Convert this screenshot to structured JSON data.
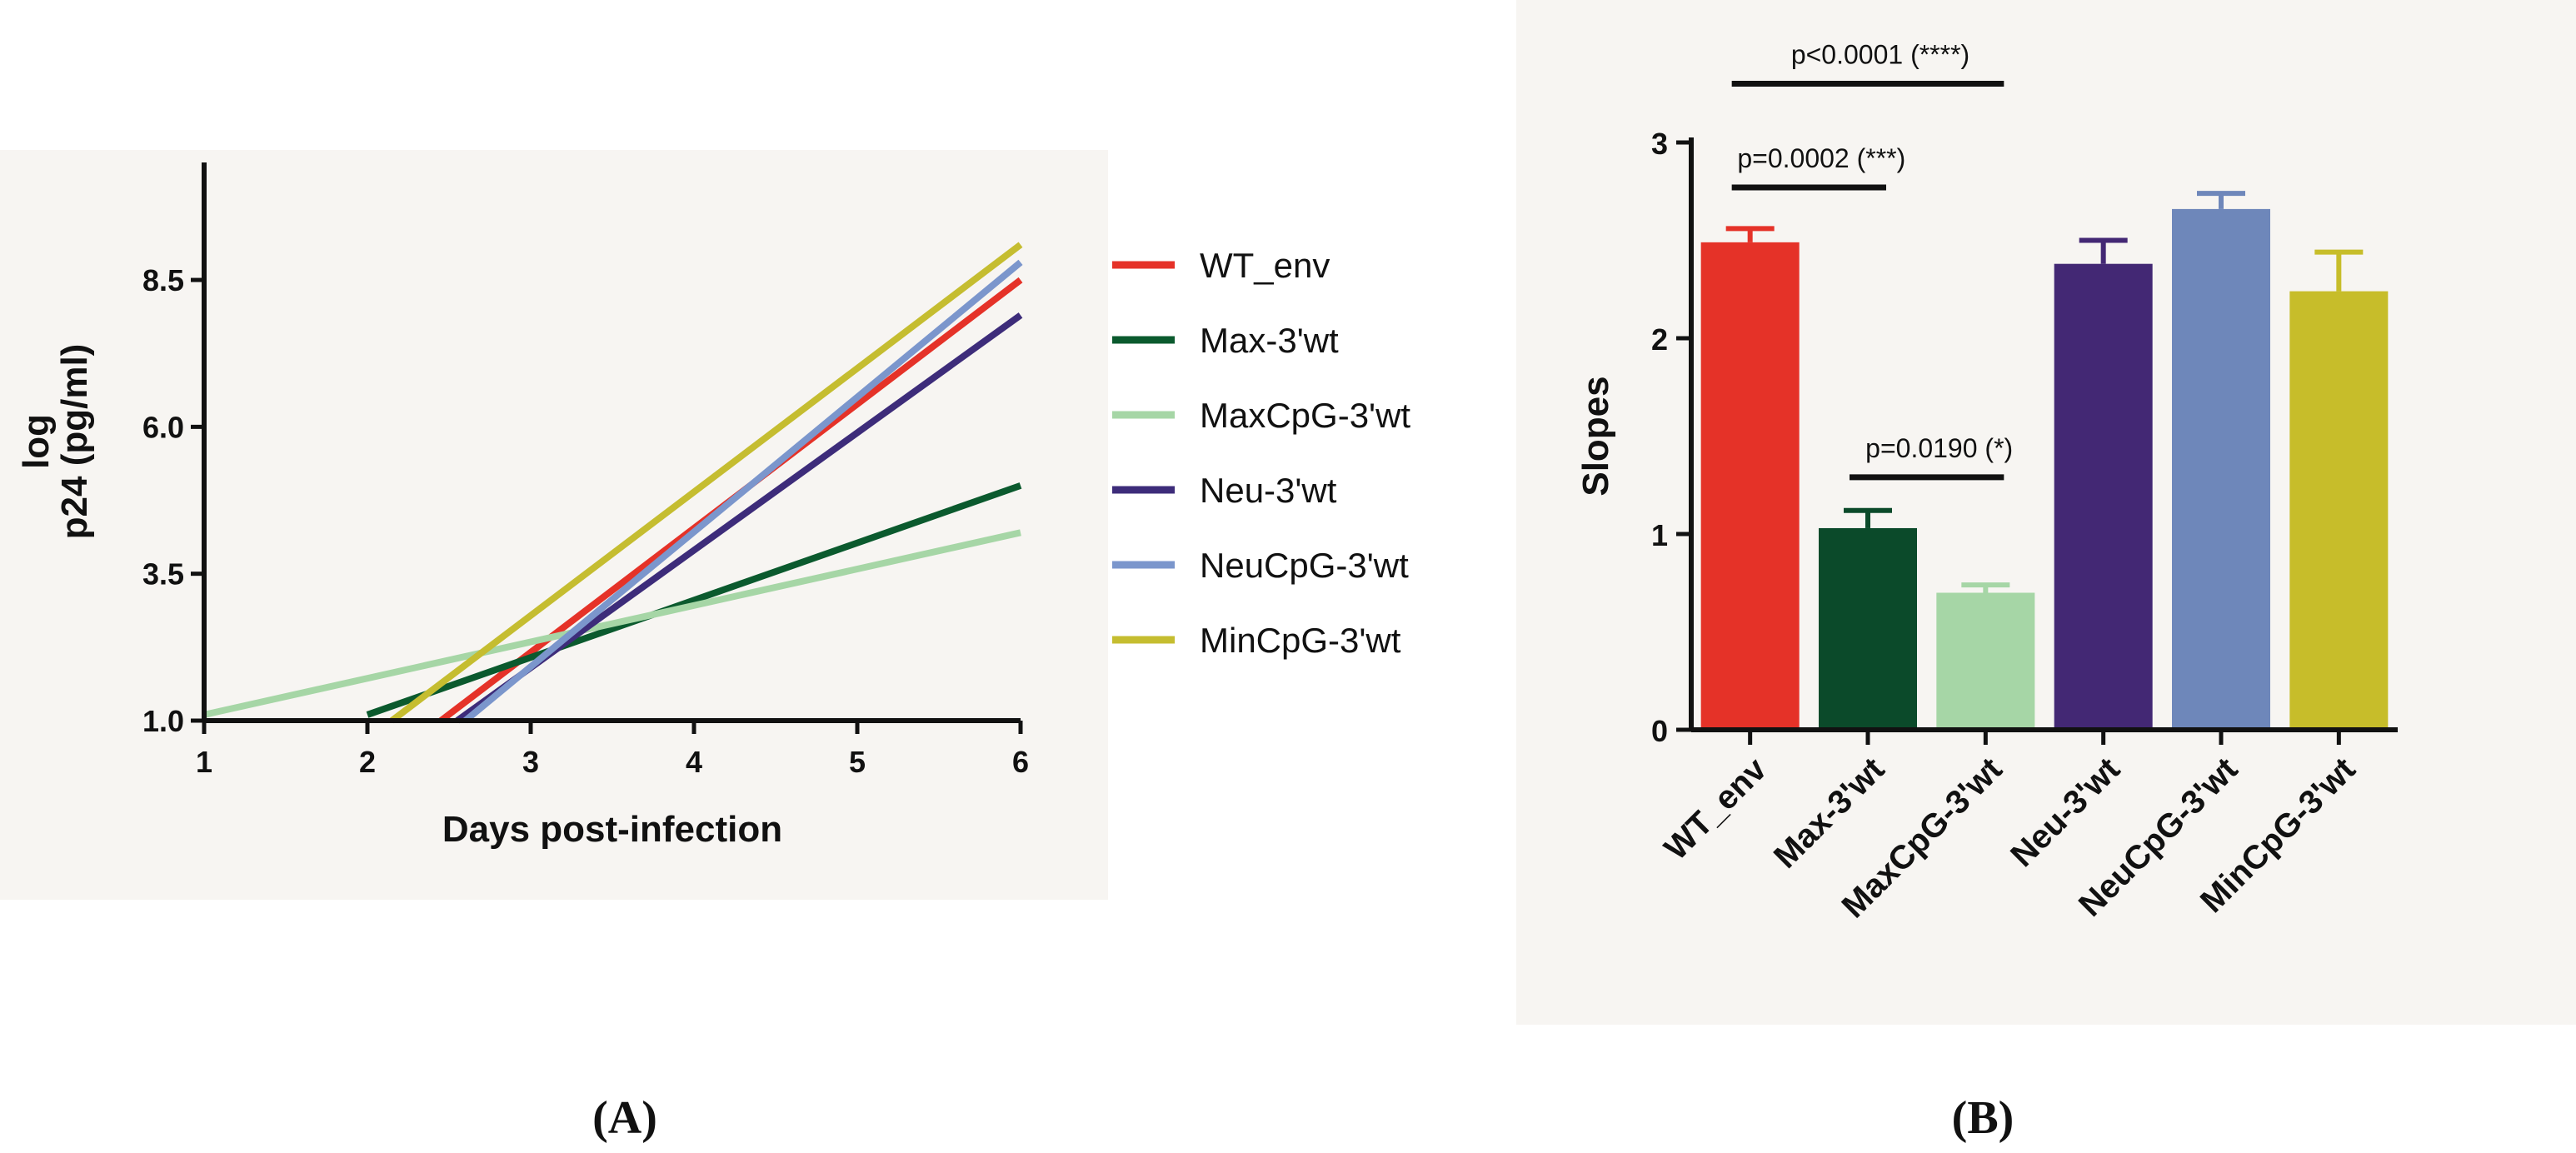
{
  "chart_data": [
    {
      "type": "line",
      "panel_label": "(A)",
      "title": "",
      "xlabel": "Days post-infection",
      "ylabel_lines": [
        "log",
        "p24 (pg/ml)"
      ],
      "xlim": [
        1,
        6
      ],
      "ylim": [
        1.0,
        10.5
      ],
      "xticks": [
        1,
        2,
        3,
        4,
        5,
        6
      ],
      "yticks": [
        1.0,
        3.5,
        6.0,
        8.5
      ],
      "ytick_labels": [
        "1.0",
        "3.5",
        "6.0",
        "8.5"
      ],
      "grid": false,
      "legend_position": "right",
      "series": [
        {
          "name": "WT_env",
          "color": "#e53228",
          "x": [
            2.45,
            6.0
          ],
          "y": [
            1.0,
            8.5
          ]
        },
        {
          "name": "Max-3'wt",
          "color": "#0b5a2e",
          "x": [
            2.0,
            6.0
          ],
          "y": [
            1.1,
            5.0
          ]
        },
        {
          "name": "MaxCpG-3'wt",
          "color": "#a6d6a6",
          "x": [
            1.0,
            6.0
          ],
          "y": [
            1.1,
            4.2
          ]
        },
        {
          "name": "Neu-3'wt",
          "color": "#3d2c7a",
          "x": [
            2.55,
            6.0
          ],
          "y": [
            1.0,
            7.9
          ]
        },
        {
          "name": "NeuCpG-3'wt",
          "color": "#7b96cc",
          "x": [
            2.6,
            6.0
          ],
          "y": [
            1.0,
            8.8
          ]
        },
        {
          "name": "MinCpG-3'wt",
          "color": "#c5bd30",
          "x": [
            2.15,
            6.0
          ],
          "y": [
            1.0,
            9.1
          ]
        }
      ]
    },
    {
      "type": "bar",
      "panel_label": "(B)",
      "title": "",
      "xlabel": "",
      "ylabel": "Slopes",
      "ylim": [
        0,
        3
      ],
      "yticks": [
        0,
        1,
        2,
        3
      ],
      "ytick_labels": [
        "0",
        "1",
        "2",
        "3"
      ],
      "grid": false,
      "categories": [
        "WT_env",
        "Max-3'wt",
        "MaxCpG-3'wt",
        "Neu-3'wt",
        "NeuCpG-3'wt",
        "MinCpG-3'wt"
      ],
      "values": [
        2.49,
        1.03,
        0.7,
        2.38,
        2.66,
        2.24
      ],
      "errors": [
        0.07,
        0.09,
        0.04,
        0.12,
        0.08,
        0.2
      ],
      "colors": [
        "#e53228",
        "#0b4a2a",
        "#a6d6a6",
        "#432874",
        "#6e87ba",
        "#c7bd2a"
      ],
      "annotations": [
        {
          "label": "p<0.0001  (****)",
          "from": 0,
          "to": 2,
          "y": 3.3
        },
        {
          "label": "p=0.0002  (***)",
          "from": 0,
          "to": 1,
          "y": 2.77
        },
        {
          "label": "p=0.0190  (*)",
          "from": 1,
          "to": 2,
          "y": 1.29
        }
      ]
    }
  ]
}
